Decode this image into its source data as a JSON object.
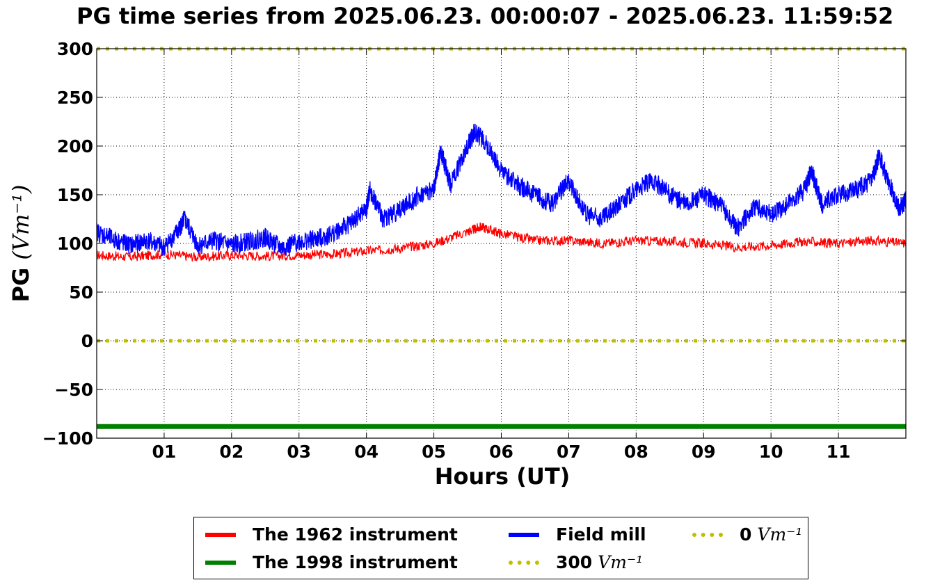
{
  "chart_data": {
    "type": "line",
    "title": "PG time series from 2025.06.23. 00:00:07 - 2025.06.23. 11:59:52",
    "xlabel": "Hours (UT)",
    "ylabel": "PG",
    "ylabel_unit": "(Vm⁻¹)",
    "xlim": [
      0,
      12
    ],
    "ylim": [
      -100,
      300
    ],
    "xticks": [
      1,
      2,
      3,
      4,
      5,
      6,
      7,
      8,
      9,
      10,
      11
    ],
    "xtick_labels": [
      "01",
      "02",
      "03",
      "04",
      "05",
      "06",
      "07",
      "08",
      "09",
      "10",
      "11"
    ],
    "yticks": [
      -100,
      -50,
      0,
      50,
      100,
      150,
      200,
      250,
      300
    ],
    "ytick_labels": [
      "−100",
      "−50",
      "0",
      "50",
      "100",
      "150",
      "200",
      "250",
      "300"
    ],
    "grid": true,
    "legend_position": "bottom-center",
    "series": [
      {
        "name": "The 1962 instrument",
        "color": "#ff0000",
        "style": "solid",
        "x": [
          0,
          0.5,
          1,
          1.5,
          2,
          2.5,
          3,
          3.5,
          4,
          4.5,
          5,
          5.5,
          5.7,
          6,
          6.5,
          7,
          7.5,
          8,
          8.5,
          9,
          9.5,
          10,
          10.5,
          11,
          11.5,
          12
        ],
        "y": [
          88,
          86,
          89,
          86,
          88,
          87,
          88,
          89,
          92,
          95,
          100,
          112,
          117,
          110,
          103,
          103,
          100,
          103,
          102,
          100,
          96,
          98,
          102,
          100,
          103,
          100
        ]
      },
      {
        "name": "The 1998 instrument",
        "color": "#008000",
        "style": "thick",
        "x": [
          0,
          12
        ],
        "y": [
          -88,
          -88
        ]
      },
      {
        "name": "Field mill",
        "color": "#0000ff",
        "style": "solid",
        "x": [
          0,
          0.25,
          0.5,
          0.75,
          1,
          1.2,
          1.3,
          1.5,
          1.75,
          2,
          2.25,
          2.5,
          2.75,
          3,
          3.25,
          3.5,
          3.75,
          4,
          4.05,
          4.25,
          4.5,
          4.75,
          5,
          5.1,
          5.25,
          5.5,
          5.6,
          5.75,
          6,
          6.25,
          6.5,
          6.75,
          7,
          7.25,
          7.5,
          7.75,
          8,
          8.25,
          8.5,
          8.75,
          9,
          9.25,
          9.5,
          9.75,
          10,
          10.25,
          10.5,
          10.6,
          10.75,
          11,
          11.25,
          11.5,
          11.6,
          11.75,
          11.9,
          12
        ],
        "y": [
          112,
          104,
          98,
          103,
          96,
          112,
          125,
          98,
          103,
          98,
          102,
          106,
          95,
          102,
          104,
          110,
          120,
          135,
          155,
          125,
          135,
          148,
          155,
          195,
          160,
          200,
          215,
          205,
          175,
          160,
          150,
          140,
          165,
          130,
          125,
          140,
          155,
          165,
          150,
          140,
          150,
          140,
          115,
          138,
          130,
          140,
          155,
          175,
          140,
          150,
          155,
          165,
          190,
          162,
          135,
          145
        ]
      },
      {
        "name": "300 Vm⁻¹",
        "color": "#bfbf00",
        "style": "dotted",
        "x": [
          0,
          12
        ],
        "y": [
          300,
          300
        ]
      },
      {
        "name": "0 Vm⁻¹",
        "color": "#bfbf00",
        "style": "dotted",
        "x": [
          0,
          12
        ],
        "y": [
          0,
          0
        ]
      }
    ]
  },
  "legend": {
    "items": [
      {
        "label": "The 1962 instrument",
        "color": "#ff0000",
        "style": "solid"
      },
      {
        "label": "The 1998 instrument",
        "color": "#008000",
        "style": "solid"
      },
      {
        "label": "Field mill",
        "color": "#0000ff",
        "style": "solid"
      },
      {
        "label": "300",
        "unit": "Vm⁻¹",
        "color": "#bfbf00",
        "style": "dotted"
      },
      {
        "label": "0",
        "unit": "Vm⁻¹",
        "color": "#bfbf00",
        "style": "dotted"
      }
    ]
  }
}
